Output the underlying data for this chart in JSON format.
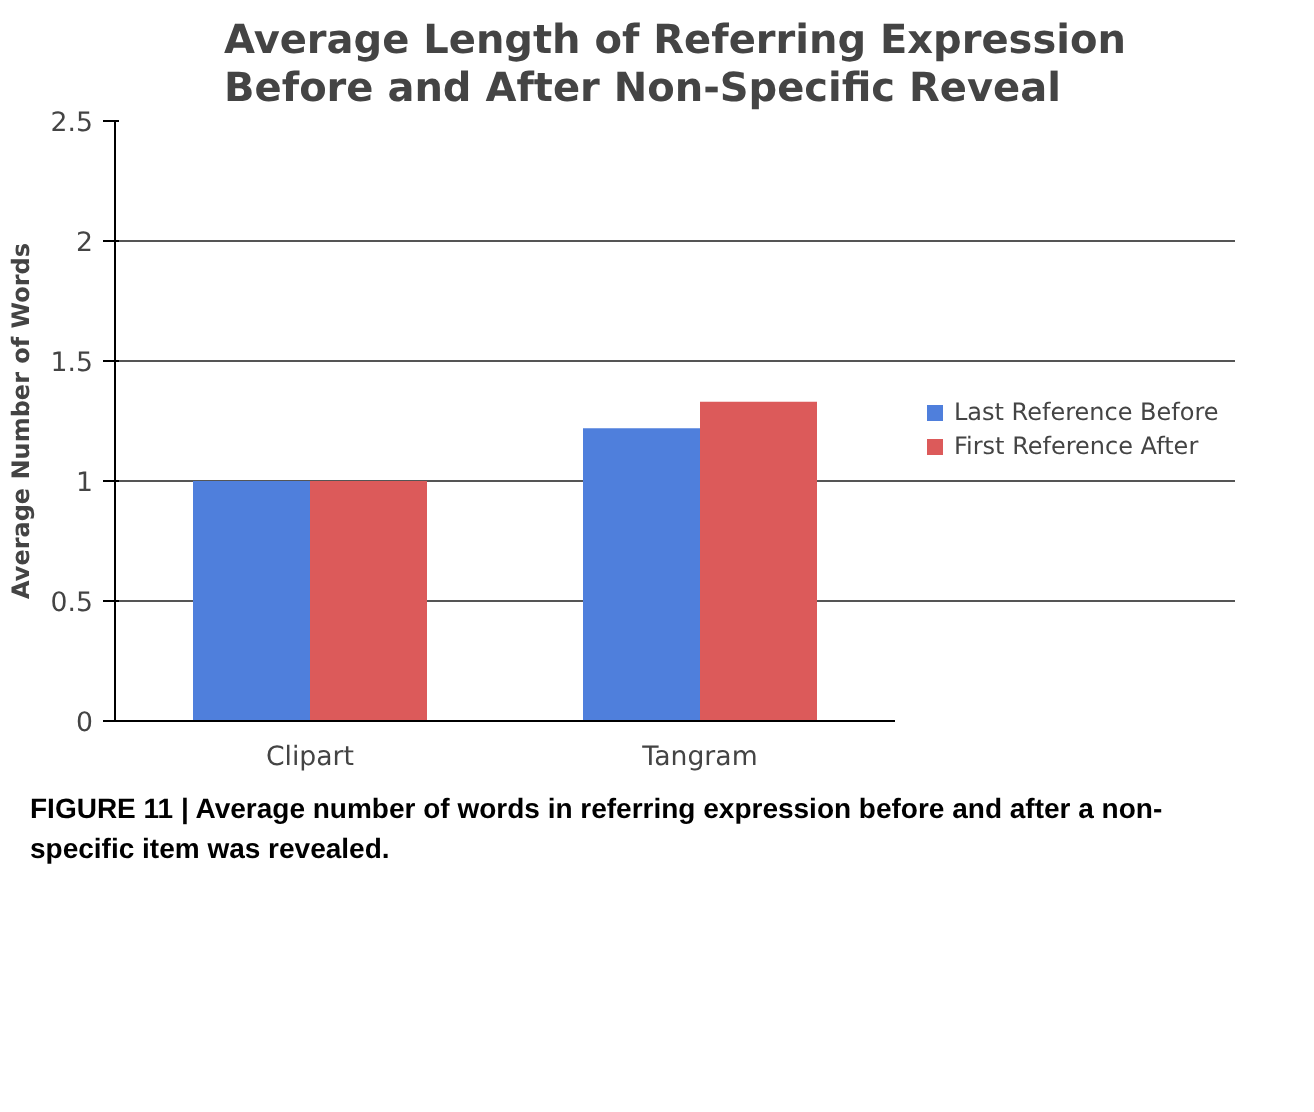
{
  "chart_data": {
    "type": "bar",
    "title": "Average Length of Referring Expression\nBefore and After Non-Specific Reveal",
    "ylabel": "Average Number of Words",
    "categories": [
      "Clipart",
      "Tangram"
    ],
    "series": [
      {
        "name": "Last Reference Before",
        "color": "#4f7fdc",
        "values": [
          1.0,
          1.22
        ]
      },
      {
        "name": "First Reference After",
        "color": "#dc5a5a",
        "values": [
          1.0,
          1.33
        ]
      }
    ],
    "ylim": [
      0,
      2.5
    ],
    "yticks": [
      0,
      0.5,
      1,
      1.5,
      2,
      2.5
    ],
    "grid": "y",
    "legend": "right",
    "annotations": [
      "FIGURE 11 | Average number of words in referring expression before and after a non-specific item was revealed."
    ]
  }
}
